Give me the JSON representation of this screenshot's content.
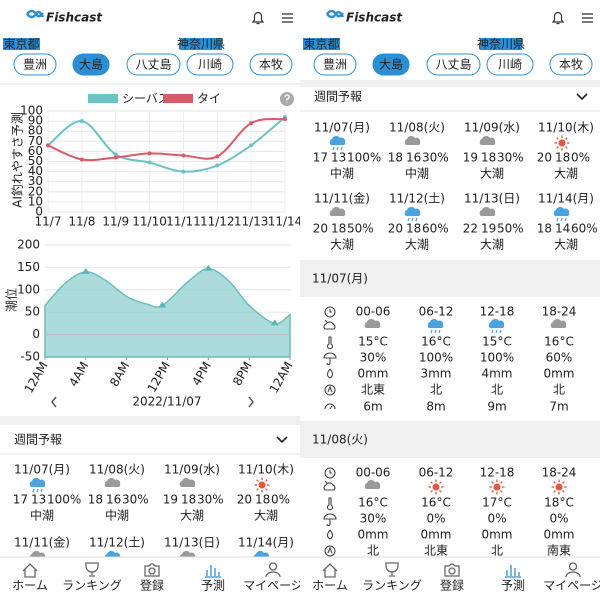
{
  "header": {
    "logo": "Fishcast"
  },
  "regions": [
    "東京都",
    "神奈川県"
  ],
  "tabs": [
    "豊洲",
    "大島",
    "八丈島",
    "川崎",
    "本牧"
  ],
  "active_tab": 1,
  "chart_data": [
    {
      "type": "line",
      "y_label": "AI釣れやすさ予測",
      "categories": [
        "11/7",
        "11/8",
        "11/9",
        "11/10",
        "11/11",
        "11/12",
        "11/13",
        "11/14"
      ],
      "series": [
        {
          "name": "シーバス",
          "color": "#6cc3c3",
          "values": [
            66,
            90,
            57,
            49,
            40,
            46,
            66,
            94
          ]
        },
        {
          "name": "タイ",
          "color": "#d95b6a",
          "values": [
            66,
            52,
            54,
            58,
            56,
            55,
            88,
            92
          ]
        }
      ],
      "ylim": [
        0,
        100
      ],
      "yticks": [
        0,
        10,
        20,
        30,
        40,
        50,
        60,
        70,
        80,
        90,
        100
      ],
      "grid": true,
      "legend": "top"
    },
    {
      "type": "area",
      "y_label": "潮位",
      "x": [
        0,
        2,
        4,
        6,
        8,
        10,
        11.5,
        14,
        16,
        18,
        20,
        22.5,
        24
      ],
      "values": [
        65,
        115,
        140,
        120,
        85,
        68,
        65,
        118,
        147,
        120,
        65,
        25,
        45
      ],
      "color": "#8fd0cf",
      "xlim": [
        0,
        24
      ],
      "xticks": [
        {
          "value": 0,
          "label": "12AM"
        },
        {
          "value": 4,
          "label": "4AM"
        },
        {
          "value": 8,
          "label": "8AM"
        },
        {
          "value": 12,
          "label": "12PM"
        },
        {
          "value": 16,
          "label": "4PM"
        },
        {
          "value": 20,
          "label": "8PM"
        },
        {
          "value": 24,
          "label": "12AM"
        }
      ],
      "ylim": [
        -50,
        200
      ],
      "yticks": [
        -50,
        0,
        50,
        100,
        150,
        200
      ],
      "grid": true,
      "markers": {
        "x": [
          4,
          11.5,
          16,
          22.5
        ],
        "values": [
          140,
          65,
          147,
          25
        ]
      }
    }
  ],
  "date_nav": "2022/11/07",
  "weekly": {
    "title": "週間予報",
    "tide_colors": {
      "中潮": "#3fb37a",
      "大潮": "#e04a4a"
    },
    "high_color": "#e0505a",
    "low_color": "#3a9ad9",
    "days": [
      {
        "date": "11/07(月)",
        "icon": "rain",
        "high": "17",
        "low": "13",
        "precip": "100%",
        "tide": "中潮"
      },
      {
        "date": "11/08(火)",
        "icon": "cloud",
        "high": "18",
        "low": "16",
        "precip": "30%",
        "tide": "中潮"
      },
      {
        "date": "11/09(水)",
        "icon": "cloud",
        "high": "19",
        "low": "18",
        "precip": "30%",
        "tide": "大潮"
      },
      {
        "date": "11/10(木)",
        "icon": "sun",
        "high": "20",
        "low": "18",
        "precip": "0%",
        "tide": "大潮"
      },
      {
        "date": "11/11(金)",
        "icon": "cloud",
        "high": "20",
        "low": "18",
        "precip": "50%",
        "tide": "大潮"
      },
      {
        "date": "11/12(土)",
        "icon": "rain",
        "high": "20",
        "low": "18",
        "precip": "60%",
        "tide": "大潮"
      },
      {
        "date": "11/13(日)",
        "icon": "cloud",
        "high": "22",
        "low": "19",
        "precip": "50%",
        "tide": "大潮"
      },
      {
        "date": "11/14(月)",
        "icon": "rain",
        "high": "18",
        "low": "14",
        "precip": "60%",
        "tide": "大潮"
      }
    ]
  },
  "daily": [
    {
      "date": "11/07(月)",
      "periods": [
        "00-06",
        "06-12",
        "12-18",
        "18-24"
      ],
      "icons": [
        "cloud",
        "rain",
        "rain",
        "cloud"
      ],
      "temperature": [
        "15°C",
        "16°C",
        "15°C",
        "16°C"
      ],
      "precip_chance": [
        "30%",
        "100%",
        "100%",
        "60%"
      ],
      "rainfall": [
        "0mm",
        "3mm",
        "4mm",
        "0mm"
      ],
      "wind_direction": [
        "北東",
        "北",
        "北",
        "北"
      ],
      "wind_speed": [
        "6m",
        "8m",
        "9m",
        "7m"
      ]
    },
    {
      "date": "11/08(火)",
      "periods": [
        "00-06",
        "06-12",
        "12-18",
        "18-24"
      ],
      "icons": [
        "cloud",
        "sun",
        "sun",
        "sun"
      ],
      "temperature": [
        "16°C",
        "16°C",
        "17°C",
        "18°C"
      ],
      "precip_chance": [
        "30%",
        "0%",
        "0%",
        "0%"
      ],
      "rainfall": [
        "0mm",
        "0mm",
        "0mm",
        "0mm"
      ],
      "wind_direction": [
        "北",
        "北東",
        "北",
        "南東"
      ]
    }
  ],
  "nav": [
    "ホーム",
    "ランキング",
    "登録",
    "予測",
    "マイページ"
  ],
  "active_nav": 3
}
